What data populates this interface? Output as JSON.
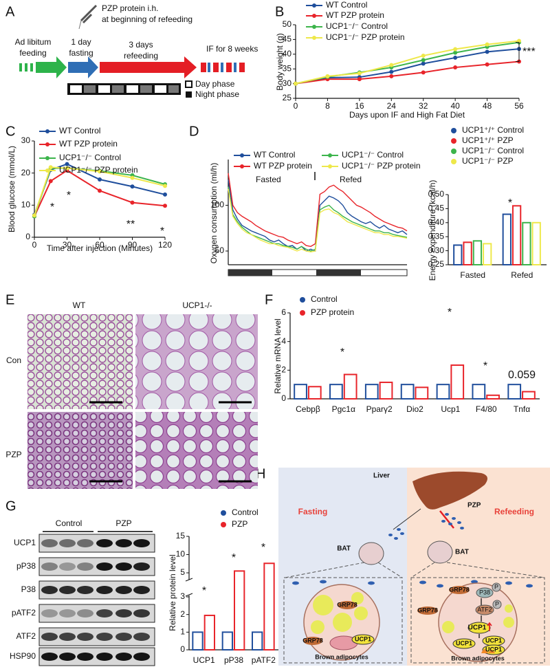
{
  "panel_labels": [
    "A",
    "B",
    "C",
    "D",
    "E",
    "F",
    "G",
    "H"
  ],
  "timeline": {
    "injection": [
      "PZP protein i.h.",
      "at beginning of refeeding"
    ],
    "steps": [
      [
        "Ad libitum",
        "feeding"
      ],
      [
        "1 day",
        "fasting"
      ],
      [
        "3 days",
        "refeeding"
      ],
      [
        "IF for 8 weeks"
      ]
    ],
    "phases": [
      "Day phase",
      "Night phase"
    ]
  },
  "chart_data": [
    {
      "type": "line",
      "x_label": "Days upon IF and High Fat Diet",
      "y_label": "Body weight (g)",
      "x": [
        0,
        8,
        16,
        24,
        32,
        40,
        48,
        56
      ],
      "xlim": [
        0,
        56
      ],
      "xticks": [
        0,
        8,
        16,
        24,
        32,
        40,
        48,
        56
      ],
      "ylim": [
        25,
        50
      ],
      "yticks": [
        25,
        30,
        35,
        40,
        45,
        50
      ],
      "markers": true,
      "annotations": [
        "***"
      ],
      "series": [
        {
          "name": "WT Control",
          "color": "#1f4e9c",
          "values": [
            30,
            32,
            32.2,
            34,
            36.8,
            38.8,
            40.8,
            41.8
          ]
        },
        {
          "name": "WT PZP protein",
          "color": "#e8242a",
          "values": [
            30,
            31.5,
            31.5,
            32.5,
            33.8,
            35.5,
            36.5,
            37.5
          ]
        },
        {
          "name": "UCP1⁻/⁻ Control",
          "color": "#3cb44b",
          "values": [
            30,
            32.3,
            33.8,
            35.5,
            38,
            40.5,
            42.5,
            44
          ]
        },
        {
          "name": "UCP1⁻/⁻ PZP protein",
          "color": "#eee84a",
          "values": [
            30,
            32.5,
            33.5,
            36.3,
            39.5,
            41.7,
            43.3,
            44.5
          ]
        }
      ]
    },
    {
      "type": "line",
      "x_label": "Time after injection (Minutes)",
      "y_label": "Blood glucose (mmol/L)",
      "x": [
        0,
        15,
        30,
        60,
        90,
        120
      ],
      "xlim": [
        0,
        120
      ],
      "xticks": [
        0,
        30,
        60,
        90,
        120
      ],
      "ylim": [
        0,
        30
      ],
      "yticks": [
        0,
        10,
        20,
        30
      ],
      "markers": true,
      "annotations": [
        "*",
        "*",
        "**",
        "*"
      ],
      "series": [
        {
          "name": "WT Control",
          "color": "#1f4e9c",
          "values": [
            7,
            21,
            22.8,
            18,
            15.8,
            13.3
          ]
        },
        {
          "name": "WT PZP protein",
          "color": "#e8242a",
          "values": [
            6.5,
            17.5,
            20.8,
            14.5,
            10.8,
            9.8
          ]
        },
        {
          "name": "UCP1⁻/⁻ Control",
          "color": "#3cb44b",
          "values": [
            6.5,
            21.5,
            21.5,
            20.7,
            19.3,
            16.5
          ]
        },
        {
          "name": "UCP1⁻/⁻ PZP protein",
          "color": "#eee84a",
          "values": [
            6.8,
            21.8,
            21.5,
            20.5,
            18.5,
            16
          ]
        }
      ]
    },
    {
      "type": "line",
      "y_label": "Oxygen consumption (ml/h)",
      "phase_labels": [
        "Fasted",
        "Refed"
      ],
      "x": [
        0,
        1,
        2,
        3,
        4,
        5,
        6,
        7,
        8,
        9,
        10,
        11,
        12,
        13,
        14,
        15,
        16,
        17,
        18,
        19,
        20,
        21,
        22,
        23,
        24,
        25,
        26,
        27,
        28,
        29,
        30,
        31,
        32,
        33,
        34,
        35,
        36,
        37,
        38,
        39
      ],
      "xlim": [
        0,
        39
      ],
      "ylim": [
        35,
        150
      ],
      "yticks": [
        50,
        100
      ],
      "markers": false,
      "series": [
        {
          "name": "WT Control",
          "color": "#1f4e9c",
          "values": [
            128,
            95,
            85,
            78,
            75,
            72,
            70,
            68,
            66,
            62,
            60,
            62,
            58,
            55,
            56,
            52,
            55,
            50,
            52,
            50,
            100,
            105,
            110,
            108,
            105,
            100,
            92,
            88,
            85,
            82,
            80,
            82,
            78,
            75,
            78,
            74,
            72,
            70,
            72,
            68
          ]
        },
        {
          "name": "WT PZP protein",
          "color": "#e8242a",
          "values": [
            135,
            100,
            92,
            88,
            85,
            82,
            78,
            75,
            72,
            70,
            68,
            66,
            65,
            62,
            60,
            58,
            60,
            56,
            55,
            58,
            112,
            115,
            120,
            122,
            118,
            115,
            110,
            105,
            100,
            98,
            95,
            92,
            88,
            85,
            82,
            80,
            78,
            76,
            75,
            72
          ]
        },
        {
          "name": "UCP1⁻/⁻ Control",
          "color": "#3cb44b",
          "values": [
            120,
            90,
            82,
            76,
            72,
            68,
            66,
            64,
            62,
            60,
            58,
            58,
            56,
            55,
            54,
            52,
            55,
            52,
            50,
            52,
            95,
            98,
            100,
            95,
            92,
            88,
            85,
            82,
            80,
            78,
            76,
            74,
            72,
            72,
            70,
            70,
            68,
            67,
            66,
            65
          ]
        },
        {
          "name": "UCP1⁻/⁻ PZP protein",
          "color": "#eee84a",
          "values": [
            118,
            88,
            80,
            74,
            70,
            68,
            65,
            62,
            60,
            58,
            58,
            56,
            55,
            54,
            52,
            50,
            52,
            50,
            49,
            50,
            92,
            95,
            96,
            92,
            90,
            86,
            82,
            80,
            78,
            76,
            74,
            72,
            70,
            70,
            68,
            68,
            66,
            66,
            65,
            64
          ]
        }
      ]
    },
    {
      "type": "bar",
      "y_label": "Energy expenditure (kcal/h)",
      "categories": [
        "Fasted",
        "Refed"
      ],
      "ylim": [
        0.25,
        0.5
      ],
      "yticks": [
        0.25,
        {
          "value": 0.3,
          "label": "0.30"
        },
        0.35,
        {
          "value": 0.4,
          "label": "0.40"
        },
        0.45,
        {
          "value": 0.5,
          "label": "0.50"
        }
      ],
      "annotations": [
        "*"
      ],
      "series": [
        {
          "name": "UCP1⁺/⁺ Control",
          "color": "#1f4e9c",
          "values": [
            0.32,
            0.43
          ]
        },
        {
          "name": "UCP1⁺/⁺ PZP",
          "color": "#e8242a",
          "values": [
            0.33,
            0.46
          ]
        },
        {
          "name": "UCP1⁻/⁻ Control",
          "color": "#3cb44b",
          "values": [
            0.335,
            0.4
          ]
        },
        {
          "name": "UCP1⁻/⁻ PZP",
          "color": "#eee84a",
          "values": [
            0.325,
            0.4
          ]
        }
      ]
    },
    {
      "type": "bar",
      "y_label": "Relative mRNA level",
      "categories": [
        "Cebpβ",
        "Pgc1α",
        "Pparγ2",
        "Dio2",
        "Ucp1",
        "F4/80",
        "Tnfα"
      ],
      "ylim": [
        0,
        6
      ],
      "yticks": [
        0,
        2,
        4,
        6
      ],
      "annotations": [
        "*",
        "*",
        "*",
        "0.059"
      ],
      "series": [
        {
          "name": "Control",
          "color": "#1f4e9c",
          "values": [
            1,
            1,
            1,
            1,
            1,
            1,
            1
          ]
        },
        {
          "name": "PZP protein",
          "color": "#e8242a",
          "values": [
            0.85,
            1.7,
            1.15,
            0.8,
            2.35,
            0.25,
            0.5
          ]
        }
      ]
    },
    {
      "type": "bar",
      "y_label": "Relative protein level",
      "categories": [
        "UCP1",
        "pP38",
        "pATF2"
      ],
      "ylim": [
        0,
        15
      ],
      "yticks": [
        0,
        1,
        2,
        3,
        5,
        10,
        15
      ],
      "axis_break": [
        3,
        3.5
      ],
      "annotations": [
        "*",
        "*",
        "*"
      ],
      "series": [
        {
          "name": "Control",
          "color": "#1f4e9c",
          "values": [
            1,
            1,
            1
          ]
        },
        {
          "name": "PZP",
          "color": "#e8242a",
          "values": [
            1.95,
            5.5,
            7.6
          ]
        }
      ]
    }
  ],
  "histology": {
    "columns": [
      "WT",
      "UCP1-/-"
    ],
    "rows": [
      "Con",
      "PZP"
    ]
  },
  "blot": {
    "groups": [
      "Control",
      "PZP"
    ],
    "proteins": [
      "UCP1",
      "pP38",
      "P38",
      "pATF2",
      "ATF2",
      "HSP90"
    ]
  },
  "schematic": {
    "organ": "Liver",
    "left_title": "Fasting",
    "right_title": "Refeeding",
    "factor": "PZP",
    "tissue": [
      "BAT",
      "BAT"
    ],
    "cells": [
      "Brown adipocytes",
      "Brown adipocytes"
    ],
    "left_cell_labels": [
      "GRP78",
      "GRP78",
      "UCP1"
    ],
    "right_cell_labels": [
      "GRP78",
      "GRP78",
      "P38",
      "P",
      "ATF2",
      "P",
      "UCP1",
      "UCP1",
      "UCP1",
      "UCP1"
    ]
  }
}
